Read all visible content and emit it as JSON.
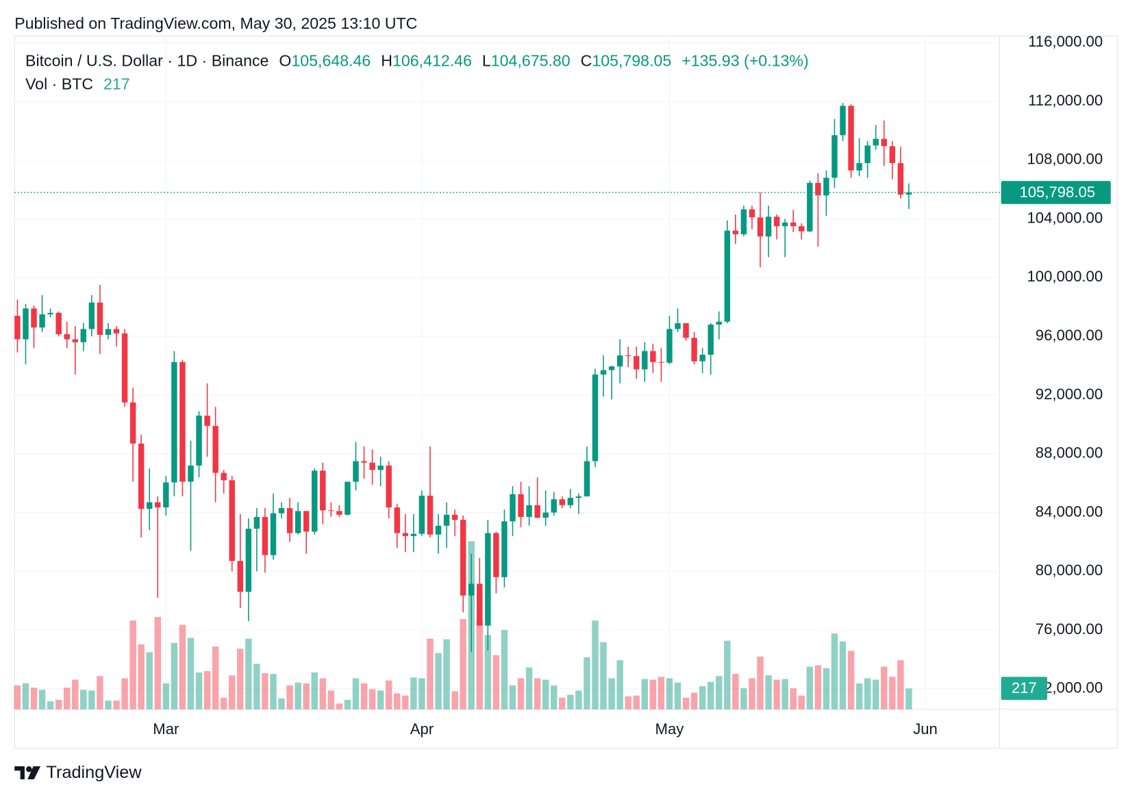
{
  "chart_data": {
    "type": "candlestick",
    "published": "Published on TradingView.com, May 30, 2025 13:10 UTC",
    "symbol": "Bitcoin / U.S. Dollar · 1D · Binance",
    "legend": {
      "open": {
        "label": "O",
        "value": "105,648.46"
      },
      "high": {
        "label": "H",
        "value": "106,412.46"
      },
      "low": {
        "label": "L",
        "value": "104,675.80"
      },
      "close": {
        "label": "C",
        "value": "105,798.05"
      },
      "change": "+135.93 (+0.13%)"
    },
    "volume_label": "Vol · BTC",
    "close_label": "105,798.05",
    "branding": "TradingView",
    "up_color": "#089981",
    "down_color": "#f23645",
    "xlim": [
      -0.35,
      119
    ],
    "xticks": [
      {
        "value": 18,
        "label": "Mar"
      },
      {
        "value": 49,
        "label": "Apr"
      },
      {
        "value": 79,
        "label": "May"
      },
      {
        "value": 110,
        "label": "Jun"
      }
    ],
    "ylim": [
      70600,
      116450
    ],
    "yticks": [
      {
        "value": 72000,
        "label": "72,000.00"
      },
      {
        "value": 76000,
        "label": "76,000.00"
      },
      {
        "value": 80000,
        "label": "80,000.00"
      },
      {
        "value": 84000,
        "label": "84,000.00"
      },
      {
        "value": 88000,
        "label": "88,000.00"
      },
      {
        "value": 92000,
        "label": "92,000.00"
      },
      {
        "value": 96000,
        "label": "96,000.00"
      },
      {
        "value": 100000,
        "label": "100,000.00"
      },
      {
        "value": 104000,
        "label": "104,000.00"
      },
      {
        "value": 108000,
        "label": "108,000.00"
      },
      {
        "value": 112000,
        "label": "112,000.00"
      },
      {
        "value": 116000,
        "label": "116,000.00"
      }
    ],
    "grid": true,
    "open": [
      97400,
      95800,
      97900,
      96600,
      97500,
      97600,
      96150,
      95800,
      95600,
      96500,
      98300,
      96100,
      96500,
      96200,
      91500,
      88700,
      84250,
      84700,
      84350,
      86050,
      94250,
      86100,
      87200,
      90600,
      89900,
      86700,
      86200,
      80700,
      78600,
      82900,
      83700,
      81100,
      83950,
      84300,
      82600,
      84100,
      82700,
      86850,
      84150,
      84100,
      83850,
      86100,
      87500,
      87400,
      86900,
      87200,
      84350,
      82600,
      82400,
      82550,
      85150,
      82500,
      83100,
      83850,
      83500,
      78350,
      79150,
      76300,
      82600,
      79600,
      83400,
      85250,
      83700,
      84500,
      83650,
      84000,
      84900,
      84500,
      85000,
      85100,
      87500,
      93400,
      93700,
      93950,
      94700,
      94650,
      93750,
      95000,
      94250,
      94200,
      96500,
      96900,
      95900,
      94300,
      94750,
      96800,
      97000,
      103200,
      102950,
      104650,
      104100,
      102800,
      104150,
      103500,
      103750,
      103500,
      103150,
      106450,
      105600,
      106800,
      109700,
      111700,
      107300,
      107800,
      109000,
      109450,
      108950,
      107800,
      105648.46
    ],
    "high": [
      98500,
      98200,
      98100,
      98800,
      97900,
      97700,
      97000,
      96700,
      96900,
      98800,
      99500,
      96900,
      96700,
      96500,
      92500,
      89300,
      87000,
      85100,
      86500,
      95000,
      94400,
      88900,
      90900,
      92800,
      91200,
      86900,
      86500,
      83900,
      83600,
      84300,
      84300,
      85300,
      84700,
      85000,
      84700,
      84100,
      87000,
      87400,
      84700,
      84500,
      86100,
      88800,
      88500,
      88300,
      87800,
      87500,
      84600,
      83900,
      83900,
      85500,
      88500,
      83900,
      84700,
      84200,
      83800,
      81200,
      80900,
      83500,
      82700,
      84200,
      85800,
      86100,
      85800,
      86400,
      85500,
      85400,
      85100,
      85600,
      85300,
      88500,
      93800,
      94700,
      94000,
      95800,
      95300,
      95300,
      95600,
      95500,
      95200,
      97400,
      97900,
      96900,
      96300,
      95200,
      96900,
      97700,
      103900,
      104300,
      104900,
      104900,
      105800,
      104900,
      104300,
      104000,
      104600,
      103700,
      106600,
      107100,
      107300,
      110800,
      111900,
      111800,
      109500,
      109300,
      110400,
      110700,
      109300,
      108900,
      106412.46
    ],
    "low": [
      94900,
      94100,
      95200,
      96300,
      97300,
      96000,
      95200,
      93400,
      95000,
      96000,
      94800,
      95800,
      95300,
      91200,
      86100,
      82300,
      82800,
      78200,
      83800,
      85100,
      85100,
      81400,
      86400,
      87800,
      84700,
      85300,
      80000,
      77500,
      76600,
      80000,
      79900,
      80800,
      83600,
      82000,
      82500,
      81200,
      82500,
      83200,
      83700,
      83700,
      83800,
      85500,
      86300,
      85900,
      85800,
      83600,
      81600,
      81300,
      81300,
      82400,
      82300,
      81200,
      81600,
      82400,
      77200,
      74500,
      76300,
      74600,
      78500,
      78900,
      82400,
      83000,
      83100,
      83600,
      83100,
      83800,
      84300,
      84300,
      83900,
      85100,
      87100,
      91900,
      91700,
      92800,
      93900,
      93100,
      92900,
      93500,
      92900,
      94100,
      96300,
      95700,
      94100,
      93500,
      93400,
      95800,
      96900,
      102300,
      102800,
      103300,
      100700,
      101400,
      102600,
      101400,
      103100,
      102600,
      103100,
      102100,
      104200,
      106100,
      109300,
      106800,
      106900,
      106800,
      108700,
      107600,
      106700,
      105400,
      104675.8
    ],
    "close": [
      95800,
      97900,
      96600,
      97500,
      97600,
      96150,
      95800,
      95600,
      96500,
      98300,
      96100,
      96500,
      96200,
      91500,
      88700,
      84250,
      84700,
      84350,
      86050,
      94250,
      86100,
      87200,
      90600,
      89900,
      86700,
      86200,
      80700,
      78600,
      82900,
      83700,
      81100,
      83950,
      84300,
      82600,
      84100,
      82700,
      86850,
      84150,
      84100,
      83850,
      86100,
      87500,
      87400,
      86900,
      87200,
      84350,
      82600,
      82400,
      82550,
      85150,
      82500,
      83100,
      83850,
      83500,
      78350,
      79150,
      76300,
      82600,
      79600,
      83400,
      85250,
      83700,
      84500,
      83650,
      84000,
      84900,
      84500,
      85000,
      85100,
      87500,
      93400,
      93700,
      93950,
      94700,
      94650,
      93750,
      95000,
      94250,
      94200,
      96500,
      96900,
      95900,
      94300,
      94750,
      96800,
      97000,
      103200,
      102950,
      104650,
      104100,
      102800,
      104150,
      103500,
      103750,
      103500,
      103150,
      106450,
      105600,
      106800,
      109700,
      111700,
      107300,
      107800,
      109000,
      109450,
      108950,
      107800,
      105650,
      105798.05
    ],
    "volume": [
      248,
      270,
      225,
      203,
      83,
      98,
      225,
      308,
      203,
      195,
      345,
      90,
      90,
      323,
      923,
      675,
      593,
      960,
      270,
      690,
      878,
      743,
      383,
      398,
      653,
      120,
      353,
      630,
      735,
      473,
      375,
      368,
      113,
      248,
      278,
      270,
      383,
      323,
      195,
      60,
      98,
      323,
      270,
      210,
      195,
      300,
      165,
      143,
      330,
      323,
      735,
      585,
      728,
      188,
      938,
      1748,
      938,
      773,
      563,
      825,
      248,
      323,
      435,
      323,
      308,
      248,
      120,
      150,
      195,
      540,
      923,
      698,
      323,
      510,
      135,
      143,
      315,
      308,
      338,
      323,
      278,
      120,
      173,
      240,
      285,
      345,
      713,
      368,
      218,
      323,
      548,
      353,
      308,
      315,
      218,
      143,
      443,
      458,
      428,
      788,
      705,
      608,
      270,
      323,
      308,
      443,
      338,
      510,
      217
    ]
  }
}
